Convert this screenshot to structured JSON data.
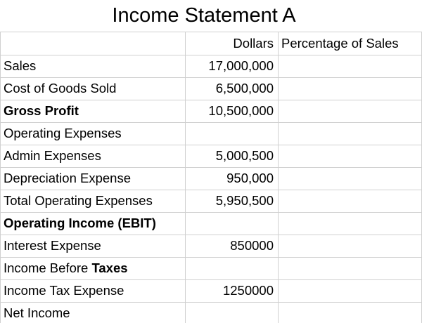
{
  "sheet": {
    "title": "Income Statement A",
    "headers": [
      "Dollars",
      "Percentage of Sales"
    ],
    "rows": [
      {
        "label": "Sales",
        "dollars": "17,000,000"
      },
      {
        "label": "Cost of Goods Sold",
        "dollars": "6,500,000"
      },
      {
        "label": "Gross Profit",
        "bold": true,
        "dollars": "10,500,000"
      },
      {
        "label": "Operating Expenses"
      },
      {
        "label": "Admin Expenses",
        "dollars": "5,000,500"
      },
      {
        "label": "Depreciation Expense",
        "dollars": "950,000"
      },
      {
        "label": "Total Operating Expenses",
        "dollars": "5,950,500"
      },
      {
        "label": "Operating Income (EBIT)",
        "bold": true
      },
      {
        "label": "Interest Expense",
        "dollars": "850000"
      },
      {
        "label_runs": [
          {
            "text": "Income Before "
          },
          {
            "text": "Taxes",
            "bold": true
          }
        ]
      },
      {
        "label": "Income Tax Expense",
        "dollars": "1250000"
      },
      {
        "label": "Net Income"
      }
    ]
  }
}
